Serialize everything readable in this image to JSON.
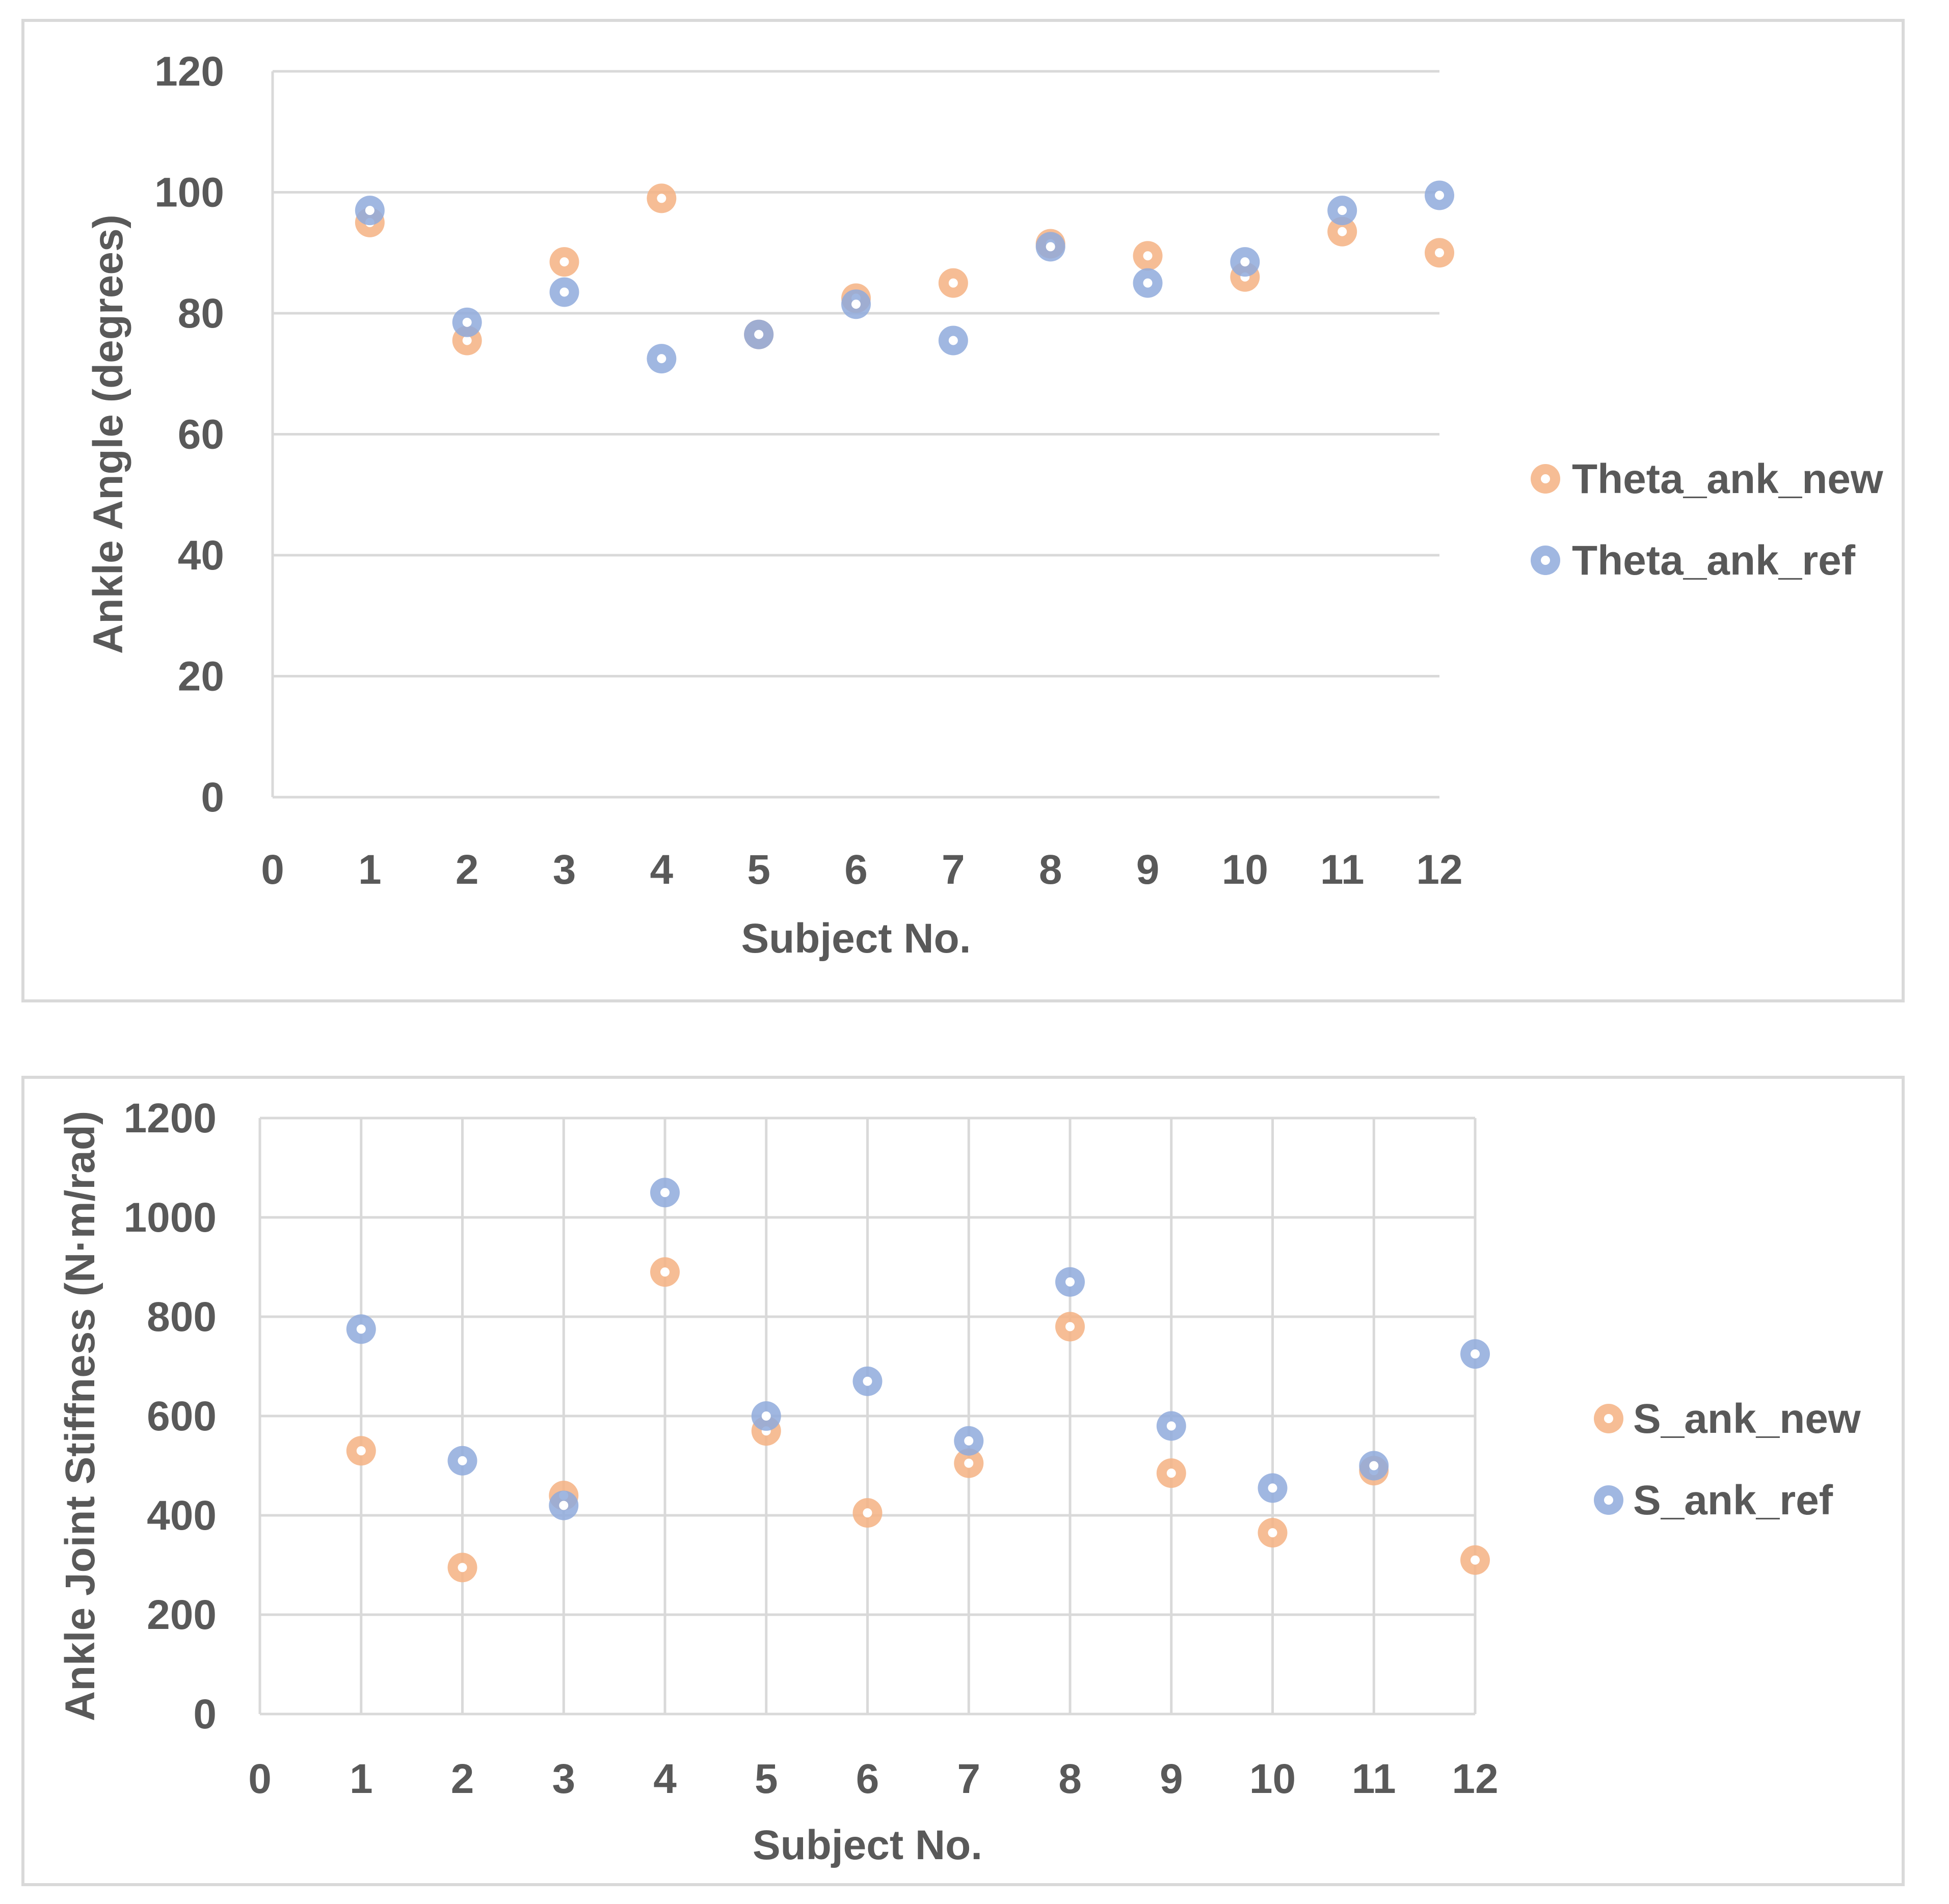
{
  "chart_data": [
    {
      "type": "scatter",
      "title": "",
      "xlabel": "Subject No.",
      "ylabel": "Ankle Angle (degrees)",
      "xlim": [
        0,
        12
      ],
      "ylim": [
        0,
        120
      ],
      "xticks": [
        "0",
        "1",
        "2",
        "3",
        "4",
        "5",
        "6",
        "7",
        "8",
        "9",
        "10",
        "11",
        "12"
      ],
      "yticks": [
        "0",
        "20",
        "40",
        "60",
        "80",
        "100",
        "120"
      ],
      "grid": "horizontal",
      "legend_position": "right",
      "series": [
        {
          "name": "Theta_ank_new",
          "color": "#F4B183",
          "x": [
            1,
            2,
            3,
            4,
            5,
            6,
            7,
            8,
            9,
            10,
            11,
            12
          ],
          "y": [
            95,
            75.5,
            88.5,
            99,
            76.5,
            82.5,
            85,
            91.5,
            89.5,
            86,
            93.5,
            90
          ]
        },
        {
          "name": "Theta_ank_ref",
          "color": "#8FAADC",
          "x": [
            1,
            2,
            3,
            4,
            5,
            6,
            7,
            8,
            9,
            10,
            11,
            12
          ],
          "y": [
            97,
            78.5,
            83.5,
            72.5,
            76.5,
            81.5,
            75.5,
            91,
            85,
            88.5,
            97,
            99.5
          ]
        }
      ]
    },
    {
      "type": "scatter",
      "title": "",
      "xlabel": "Subject No.",
      "ylabel": "Ankle Joint Stiffness (N·m/rad)",
      "xlim": [
        0,
        12
      ],
      "ylim": [
        0,
        1200
      ],
      "xticks": [
        "0",
        "1",
        "2",
        "3",
        "4",
        "5",
        "6",
        "7",
        "8",
        "9",
        "10",
        "11",
        "12"
      ],
      "yticks": [
        "0",
        "200",
        "400",
        "600",
        "800",
        "1000",
        "1200"
      ],
      "grid": "both",
      "legend_position": "right",
      "series": [
        {
          "name": "S_ank_new",
          "color": "#F4B183",
          "x": [
            1,
            2,
            3,
            4,
            5,
            6,
            7,
            8,
            9,
            10,
            11,
            12
          ],
          "y": [
            530,
            295,
            440,
            890,
            570,
            405,
            505,
            780,
            485,
            365,
            490,
            310
          ]
        },
        {
          "name": "S_ank_ref",
          "color": "#8FAADC",
          "x": [
            1,
            2,
            3,
            4,
            5,
            6,
            7,
            8,
            9,
            10,
            11,
            12
          ],
          "y": [
            775,
            510,
            420,
            1050,
            600,
            670,
            550,
            870,
            580,
            455,
            500,
            725
          ]
        }
      ]
    }
  ]
}
